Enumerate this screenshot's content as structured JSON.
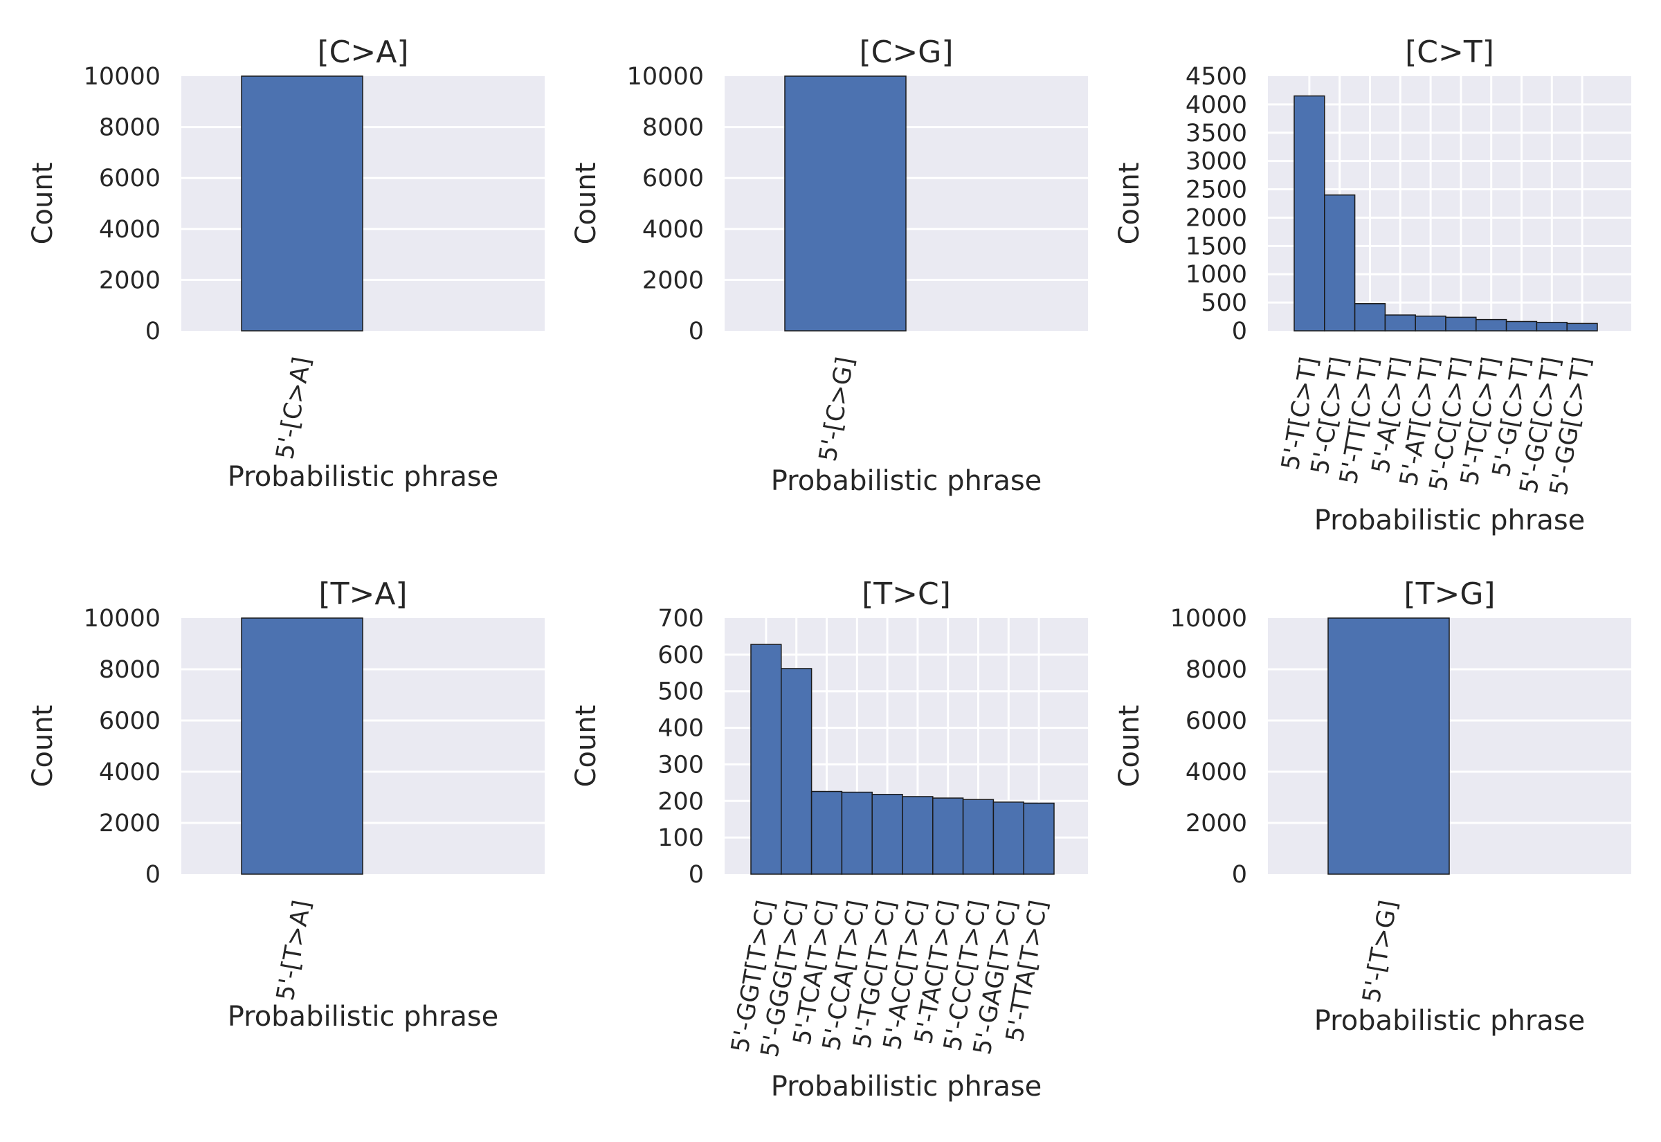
{
  "colors": {
    "background": "#ffffff",
    "plot_background": "#EAEAF2",
    "bar": "#4C72B0",
    "grid": "#ffffff",
    "text": "#262626"
  },
  "chart_data": [
    {
      "type": "bar",
      "title": "[C>A]",
      "xlabel": "Probabilistic phrase",
      "ylabel": "Count",
      "categories": [
        "5'-[C>A]"
      ],
      "values": [
        10000
      ],
      "ylim": [
        0,
        10000
      ],
      "yticks": [
        "0",
        "2000",
        "4000",
        "6000",
        "8000",
        "10000"
      ],
      "grid": true
    },
    {
      "type": "bar",
      "title": "[C>G]",
      "xlabel": "Probabilistic phrase",
      "ylabel": "Count",
      "categories": [
        "5'-[C>G]"
      ],
      "values": [
        10000
      ],
      "ylim": [
        0,
        10000
      ],
      "yticks": [
        "0",
        "2000",
        "4000",
        "6000",
        "8000",
        "10000"
      ],
      "grid": true
    },
    {
      "type": "bar",
      "title": "[C>T]",
      "xlabel": "Probabilistic phrase",
      "ylabel": "Count",
      "categories": [
        "5'-T[C>T]",
        "5'-C[C>T]",
        "5'-TT[C>T]",
        "5'-A[C>T]",
        "5'-AT[C>T]",
        "5'-CC[C>T]",
        "5'-TC[C>T]",
        "5'-G[C>T]",
        "5'-GC[C>T]",
        "5'-GG[C>T]"
      ],
      "values": [
        4150,
        2400,
        480,
        280,
        260,
        240,
        200,
        165,
        150,
        130
      ],
      "ylim": [
        0,
        4500
      ],
      "yticks": [
        "0",
        "500",
        "1000",
        "1500",
        "2000",
        "2500",
        "3000",
        "3500",
        "4000",
        "4500"
      ],
      "grid": true
    },
    {
      "type": "bar",
      "title": "[T>A]",
      "xlabel": "Probabilistic phrase",
      "ylabel": "Count",
      "categories": [
        "5'-[T>A]"
      ],
      "values": [
        10000
      ],
      "ylim": [
        0,
        10000
      ],
      "yticks": [
        "0",
        "2000",
        "4000",
        "6000",
        "8000",
        "10000"
      ],
      "grid": true
    },
    {
      "type": "bar",
      "title": "[T>C]",
      "xlabel": "Probabilistic phrase",
      "ylabel": "Count",
      "categories": [
        "5'-GGT[T>C]",
        "5'-GGG[T>C]",
        "5'-TCA[T>C]",
        "5'-CCA[T>C]",
        "5'-TGC[T>C]",
        "5'-ACC[T>C]",
        "5'-TAC[T>C]",
        "5'-CCC[T>C]",
        "5'-GAG[T>C]",
        "5'-TTA[T>C]"
      ],
      "values": [
        628,
        562,
        226,
        224,
        218,
        212,
        208,
        204,
        197,
        194
      ],
      "ylim": [
        0,
        700
      ],
      "yticks": [
        "0",
        "100",
        "200",
        "300",
        "400",
        "500",
        "600",
        "700"
      ],
      "grid": true
    },
    {
      "type": "bar",
      "title": "[T>G]",
      "xlabel": "Probabilistic phrase",
      "ylabel": "Count",
      "categories": [
        "5'-[T>G]"
      ],
      "values": [
        10000
      ],
      "ylim": [
        0,
        10000
      ],
      "yticks": [
        "0",
        "2000",
        "4000",
        "6000",
        "8000",
        "10000"
      ],
      "grid": true
    }
  ]
}
